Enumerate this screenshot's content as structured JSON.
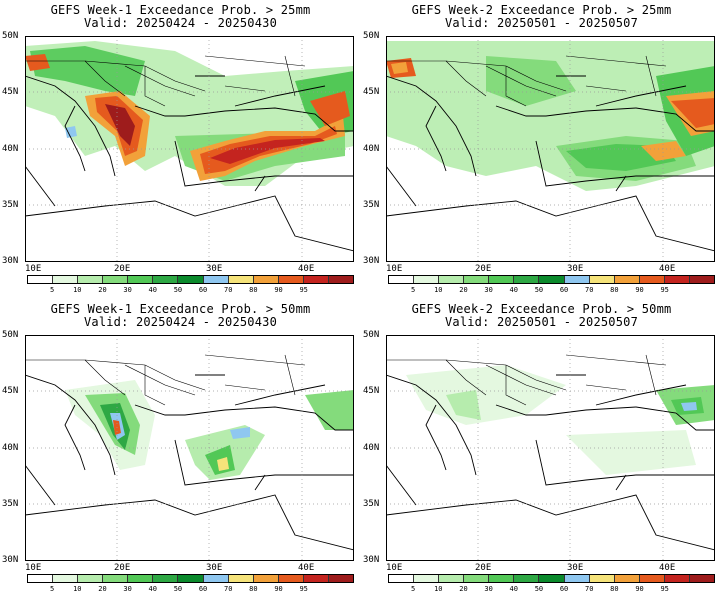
{
  "panels": [
    {
      "line1": "GEFS Week-1 Exceedance Prob. > 25mm",
      "line2": "Valid: 20250424 - 20250430"
    },
    {
      "line1": "GEFS Week-2 Exceedance Prob. > 25mm",
      "line2": "Valid: 20250501 - 20250507"
    },
    {
      "line1": "GEFS Week-1 Exceedance Prob. > 50mm",
      "line2": "Valid: 20250424 - 20250430"
    },
    {
      "line1": "GEFS Week-2 Exceedance Prob. > 50mm",
      "line2": "Valid: 20250501 - 20250507"
    }
  ],
  "lat_labels": [
    "50N",
    "45N",
    "40N",
    "35N",
    "30N"
  ],
  "lon_labels": [
    "10E",
    "20E",
    "30E",
    "40E"
  ],
  "colorbar": {
    "labels": [
      "5",
      "10",
      "20",
      "30",
      "40",
      "50",
      "60",
      "70",
      "80",
      "90",
      "95"
    ],
    "colors": [
      "#ffffff",
      "#e4f8e0",
      "#b6ecad",
      "#84db7c",
      "#52c856",
      "#2ea844",
      "#0b8a2c",
      "#8fc7f0",
      "#f5e37a",
      "#f2a13a",
      "#e55a1e",
      "#c4241f",
      "#9e1c1c"
    ]
  }
}
